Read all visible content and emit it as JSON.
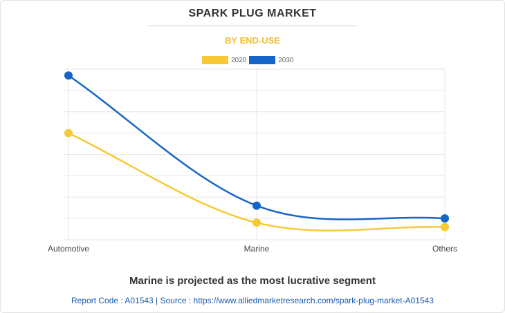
{
  "header": {
    "title": "SPARK PLUG MARKET",
    "subtitle": "BY END-USE"
  },
  "colors": {
    "series_2020": "#f6c935",
    "series_2030": "#1565c8",
    "subtitle": "#f4bf32",
    "grid": "#e6e6e6",
    "axis_text": "#444444"
  },
  "chart_data": {
    "type": "line",
    "title": "SPARK PLUG MARKET",
    "subtitle": "BY END-USE",
    "categories": [
      "Automotive",
      "Marine",
      "Others"
    ],
    "series": [
      {
        "name": "2020",
        "values": [
          5.0,
          0.8,
          0.6
        ]
      },
      {
        "name": "2030",
        "values": [
          7.7,
          1.6,
          1.0
        ]
      }
    ],
    "ylim": [
      0,
      8
    ],
    "grid": true,
    "legend": "top-center",
    "smooth": true
  },
  "summary": {
    "headline": "Marine is projected as the most lucrative segment",
    "footer": "Report Code : A01543  |  Source : https://www.alliedmarketresearch.com/spark-plug-market-A01543"
  }
}
